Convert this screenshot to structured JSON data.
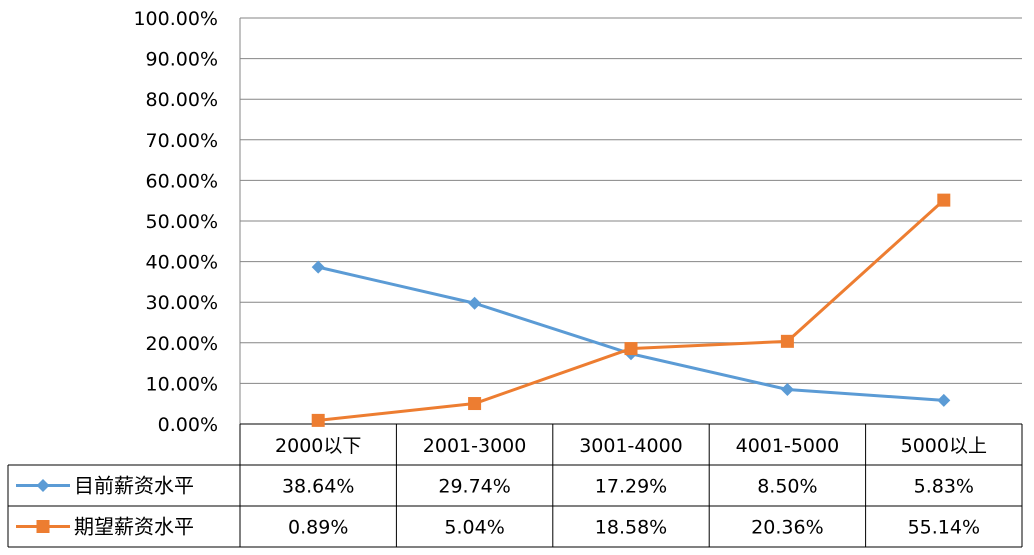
{
  "chart_data": {
    "type": "line",
    "categories": [
      "2000以下",
      "2001-3000",
      "3001-4000",
      "4001-5000",
      "5000以上"
    ],
    "ylim": [
      0,
      100
    ],
    "y_ticks": [
      0,
      10,
      20,
      30,
      40,
      50,
      60,
      70,
      80,
      90,
      100
    ],
    "y_tick_labels": [
      "0.00%",
      "10.00%",
      "20.00%",
      "30.00%",
      "40.00%",
      "50.00%",
      "60.00%",
      "70.00%",
      "80.00%",
      "90.00%",
      "100.00%"
    ],
    "grid": true,
    "legend_position": "data-table",
    "series": [
      {
        "name": "目前薪资水平",
        "values": [
          38.64,
          29.74,
          17.29,
          8.5,
          5.83
        ],
        "labels": [
          "38.64%",
          "29.74%",
          "17.29%",
          "8.50%",
          "5.83%"
        ],
        "color": "#5b9bd5",
        "marker": "diamond"
      },
      {
        "name": "期望薪资水平",
        "values": [
          0.89,
          5.04,
          18.58,
          20.36,
          55.14
        ],
        "labels": [
          "0.89%",
          "5.04%",
          "18.58%",
          "20.36%",
          "55.14%"
        ],
        "color": "#ed7d31",
        "marker": "square"
      }
    ]
  }
}
